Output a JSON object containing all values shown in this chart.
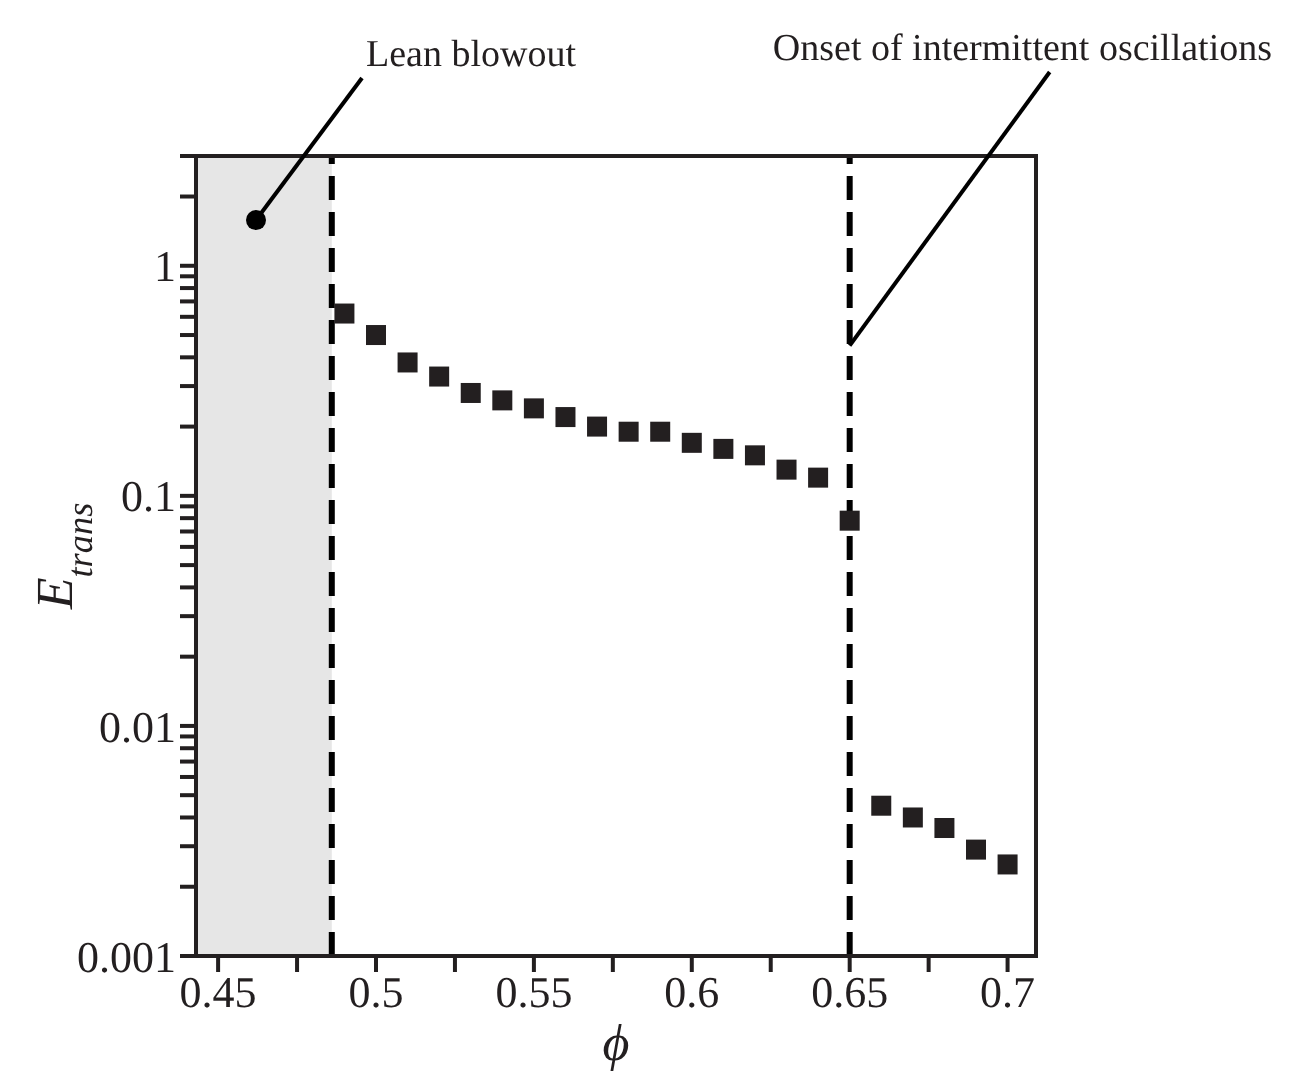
{
  "chart_data": {
    "type": "scatter",
    "xlabel": "ϕ",
    "ylabel": "E$_{trans}$",
    "x": [
      0.49,
      0.5,
      0.51,
      0.52,
      0.53,
      0.54,
      0.55,
      0.56,
      0.57,
      0.58,
      0.59,
      0.6,
      0.61,
      0.62,
      0.63,
      0.64,
      0.65,
      0.66,
      0.67,
      0.68,
      0.69,
      0.7
    ],
    "series": [
      {
        "color": "#231f20",
        "values": [
          0.62,
          0.5,
          0.38,
          0.33,
          0.28,
          0.26,
          0.24,
          0.22,
          0.2,
          0.19,
          0.19,
          0.17,
          0.16,
          0.15,
          0.13,
          0.12,
          0.078,
          0.0045,
          0.004,
          0.0036,
          0.0029,
          0.0025
        ]
      }
    ],
    "marker": "square",
    "log": "y",
    "grid": false,
    "legend": false,
    "xlim": [
      0.443,
      0.709
    ],
    "ylim": [
      0.001,
      3
    ],
    "xticks": [
      0.45,
      {
        "value": 0.475,
        "label": null
      },
      0.5,
      {
        "value": 0.525,
        "label": null
      },
      0.55,
      {
        "value": 0.575,
        "label": null
      },
      0.6,
      {
        "value": 0.625,
        "label": null
      },
      0.65,
      {
        "value": 0.675,
        "label": null
      },
      0.7
    ],
    "yticks": [
      0.001,
      {
        "value": 0.002,
        "label": null
      },
      {
        "value": 0.003,
        "label": null
      },
      {
        "value": 0.004,
        "label": null
      },
      {
        "value": 0.005,
        "label": null
      },
      {
        "value": 0.006,
        "label": null
      },
      {
        "value": 0.007,
        "label": null
      },
      {
        "value": 0.008,
        "label": null
      },
      {
        "value": 0.009,
        "label": null
      },
      0.01,
      {
        "value": 0.02,
        "label": null
      },
      {
        "value": 0.03,
        "label": null
      },
      {
        "value": 0.04,
        "label": null
      },
      {
        "value": 0.05,
        "label": null
      },
      {
        "value": 0.06,
        "label": null
      },
      {
        "value": 0.07,
        "label": null
      },
      {
        "value": 0.08,
        "label": null
      },
      {
        "value": 0.09,
        "label": null
      },
      0.1,
      {
        "value": 0.2,
        "label": null
      },
      {
        "value": 0.3,
        "label": null
      },
      {
        "value": 0.4,
        "label": null
      },
      {
        "value": 0.5,
        "label": null
      },
      {
        "value": 0.6,
        "label": null
      },
      {
        "value": 0.7,
        "label": null
      },
      {
        "value": 0.8,
        "label": null
      },
      {
        "value": 0.9,
        "label": null
      },
      1,
      {
        "value": 2,
        "label": null
      },
      {
        "value": 3,
        "label": null
      }
    ],
    "bands": [
      {
        "axis": "x",
        "from": 0.443,
        "to": 0.486,
        "color": "#e6e6e6"
      }
    ],
    "ref_lines": [
      {
        "axis": "x",
        "value": 0.486,
        "line_style": "dashed"
      },
      {
        "axis": "x",
        "value": 0.65,
        "line_style": "dashed"
      }
    ],
    "annotations": [
      {
        "text": "Lean blowout",
        "x": 0.462,
        "y": 1.58
      },
      {
        "text": "Onset of intermittent oscillations",
        "x": 0.65,
        "y": 0.45
      }
    ]
  }
}
